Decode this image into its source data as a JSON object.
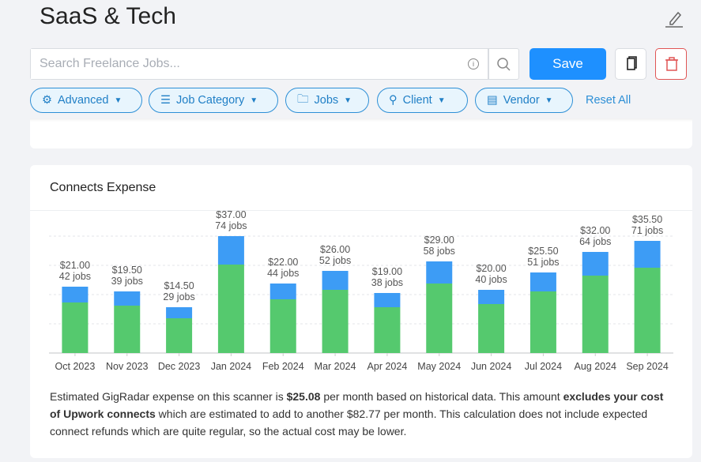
{
  "header": {
    "title": "SaaS & Tech",
    "edit_icon": "pencil-icon"
  },
  "search": {
    "placeholder": "Search Freelance Jobs...",
    "info_icon": "i"
  },
  "buttons": {
    "save": "Save",
    "copy_icon": "copy-icon",
    "delete_icon": "trash-icon"
  },
  "filters": [
    {
      "label": "Advanced",
      "icon": "gear-icon"
    },
    {
      "label": "Job Category",
      "icon": "list-icon"
    },
    {
      "label": "Jobs",
      "icon": "folder-icon"
    },
    {
      "label": "Client",
      "icon": "user-icon"
    },
    {
      "label": "Vendor",
      "icon": "id-card-icon"
    }
  ],
  "reset_all": "Reset All",
  "colors": {
    "primary": "#1e90ff",
    "bar_green": "#55c96e",
    "bar_blue": "#3d9cf5",
    "danger": "#e05555"
  },
  "expense": {
    "title": "Connects Expense",
    "desc": {
      "p1": "Estimated GigRadar expense on this scanner is ",
      "amount": "$25.08",
      "p2": " per month based on historical data. This amount ",
      "bold2": "excludes your cost of Upwork connects",
      "p3": " which are estimated to add to another $82.77 per month. This calculation does not include expected connect refunds which are quite regular, so the actual cost may be lower."
    }
  },
  "chart_data": {
    "type": "bar",
    "stacked": true,
    "grid": true,
    "categories": [
      "Oct 2023",
      "Nov 2023",
      "Dec 2023",
      "Jan 2024",
      "Feb 2024",
      "Mar 2024",
      "Apr 2024",
      "May 2024",
      "Jun 2024",
      "Jul 2024",
      "Aug 2024",
      "Sep 2024"
    ],
    "cost_labels": [
      "$21.00",
      "$19.50",
      "$14.50",
      "$37.00",
      "$22.00",
      "$26.00",
      "$19.00",
      "$29.00",
      "$20.00",
      "$25.50",
      "$32.00",
      "$35.50"
    ],
    "jobs_labels": [
      "42 jobs",
      "39 jobs",
      "29 jobs",
      "74 jobs",
      "44 jobs",
      "52 jobs",
      "38 jobs",
      "58 jobs",
      "40 jobs",
      "51 jobs",
      "64 jobs",
      "71 jobs"
    ],
    "jobs": [
      42,
      39,
      29,
      74,
      44,
      52,
      38,
      58,
      40,
      51,
      64,
      71
    ],
    "series": [
      {
        "color": "#55c96e",
        "values": [
          32,
          30,
          22,
          56,
          34,
          40,
          29,
          44,
          31,
          39,
          49,
          54
        ]
      },
      {
        "color": "#3d9cf5",
        "values": [
          10,
          9,
          7,
          18,
          10,
          12,
          9,
          14,
          9,
          12,
          15,
          17
        ]
      }
    ],
    "ylim": [
      0,
      80
    ]
  }
}
